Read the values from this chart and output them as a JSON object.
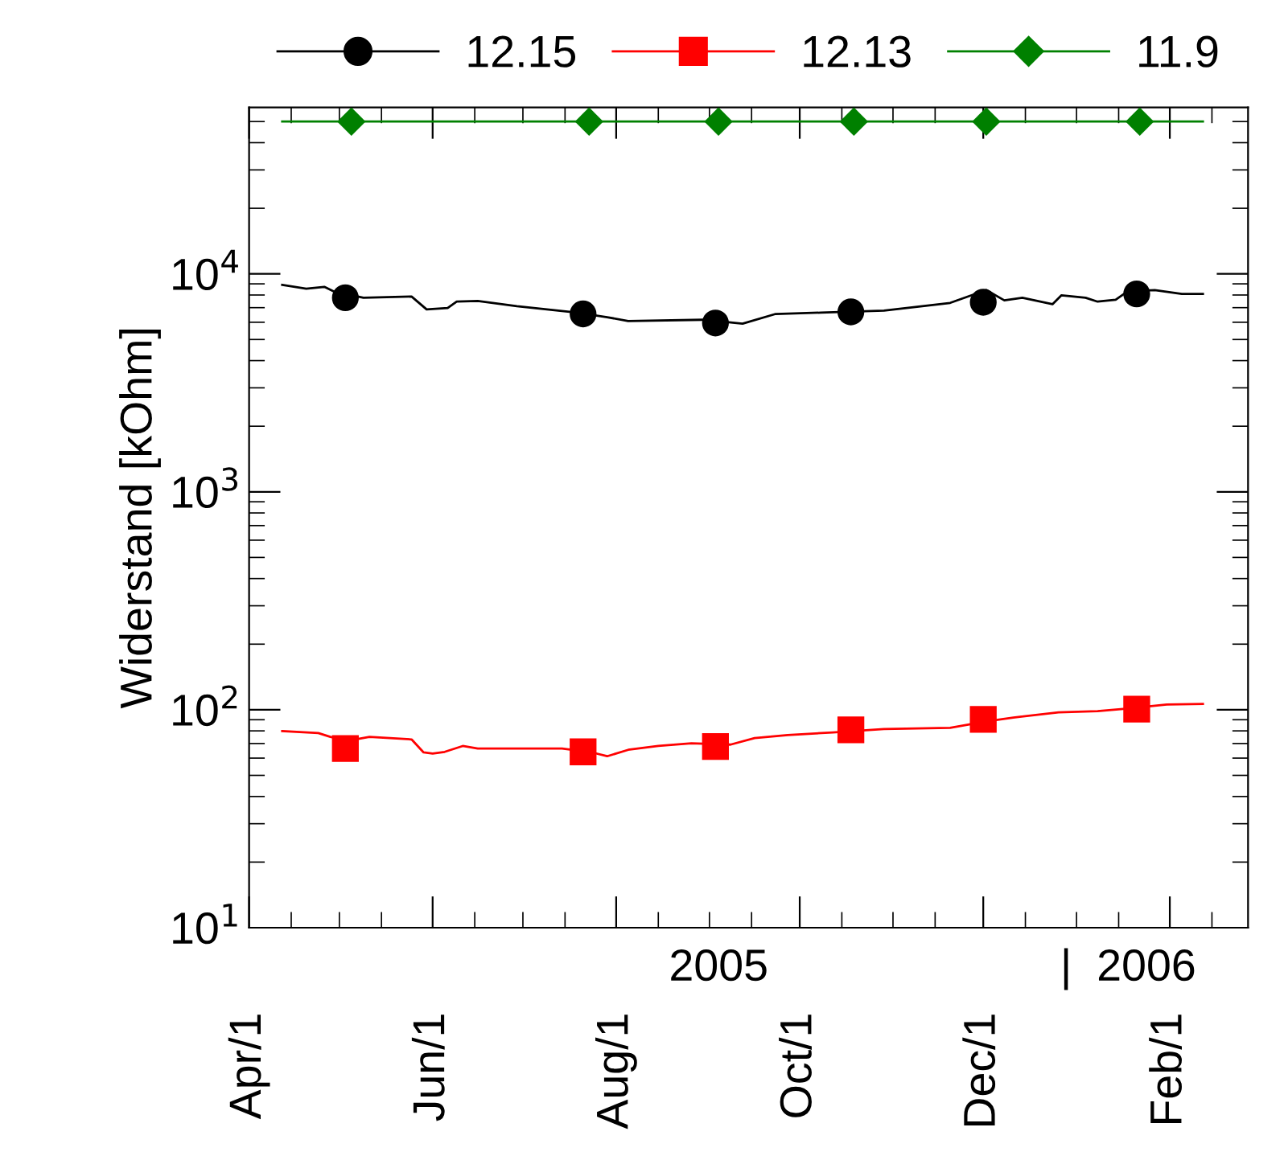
{
  "chart_data": {
    "type": "line",
    "ylabel": "Widerstand [kOhm]",
    "log": "y",
    "ylim": [
      10,
      58000
    ],
    "yticks": [
      {
        "value": 10,
        "label": "10$^{1}$"
      },
      {
        "value": 100,
        "label": "10$^{2}$"
      },
      {
        "value": 1000,
        "label": "10$^{3}$"
      },
      {
        "value": 10000,
        "label": "10$^{4}$"
      }
    ],
    "xlim": [
      "2005-04-01",
      "2006-02-27"
    ],
    "xticks": [
      {
        "value": "2005-04-01",
        "label": "Apr/1"
      },
      {
        "value": "2005-06-01",
        "label": "Jun/1"
      },
      {
        "value": "2005-08-01",
        "label": "Aug/1"
      },
      {
        "value": "2005-10-01",
        "label": "Oct/1"
      },
      {
        "value": "2005-12-01",
        "label": "Dec/1"
      },
      {
        "value": "2006-02-01",
        "label": "Feb/1"
      }
    ],
    "grid": false,
    "legend": "top",
    "annotations": [
      "2005",
      "|  2006"
    ],
    "series": [
      {
        "color": "#000000",
        "marker": "none",
        "x": [
          "2005-04-12",
          "2005-04-20",
          "2005-04-26",
          "2005-04-29",
          "2005-05-09",
          "2005-05-25",
          "2005-05-30",
          "2005-06-06",
          "2005-06-09",
          "2005-06-16",
          "2005-06-29",
          "2005-07-19",
          "2005-07-29",
          "2005-08-05",
          "2005-08-30",
          "2005-09-12",
          "2005-09-23",
          "2005-10-08",
          "2005-10-29",
          "2005-11-20",
          "2005-12-02",
          "2005-12-08",
          "2005-12-14",
          "2005-12-24",
          "2005-12-27",
          "2006-01-04",
          "2006-01-08",
          "2006-01-14",
          "2006-01-18",
          "2006-01-27",
          "2006-02-05",
          "2006-02-12"
        ],
        "values": [
          8910,
          8550,
          8720,
          8320,
          7770,
          7870,
          6870,
          6970,
          7460,
          7510,
          7110,
          6640,
          6330,
          6080,
          6160,
          5910,
          6550,
          6640,
          6780,
          7360,
          8430,
          7560,
          7770,
          7260,
          7980,
          7770,
          7460,
          7610,
          8320,
          8430,
          8090,
          8090
        ]
      },
      {
        "type": "scatter",
        "name": "12.15",
        "color": "#000000",
        "marker": "circle",
        "x": [
          "2005-05-03",
          "2005-07-21",
          "2005-09-03",
          "2005-10-18",
          "2005-12-01",
          "2006-01-21"
        ],
        "values": [
          7770,
          6550,
          5950,
          6690,
          7410,
          8090
        ]
      },
      {
        "color": "#ff0000",
        "marker": "none",
        "x": [
          "2005-04-12",
          "2005-04-24",
          "2005-04-28",
          "2005-05-04",
          "2005-05-11",
          "2005-05-25",
          "2005-05-29",
          "2005-06-01",
          "2005-06-05",
          "2005-06-11",
          "2005-06-16",
          "2005-07-14",
          "2005-07-24",
          "2005-07-29",
          "2005-08-05",
          "2005-08-15",
          "2005-08-26",
          "2005-09-08",
          "2005-09-16",
          "2005-09-27",
          "2005-10-12",
          "2005-10-29",
          "2005-11-20",
          "2005-12-02",
          "2005-12-11",
          "2005-12-26",
          "2006-01-08",
          "2006-01-18",
          "2006-01-31",
          "2006-02-12"
        ],
        "values": [
          79.8,
          78.2,
          75.1,
          72.1,
          75.1,
          73.1,
          63.7,
          62.9,
          64.1,
          68.2,
          66.4,
          66.4,
          63.7,
          61.2,
          65.5,
          68.2,
          70.1,
          69.2,
          74.1,
          76.6,
          78.7,
          81.5,
          82.6,
          88.5,
          92.1,
          97.3,
          98.6,
          101.4,
          105.6,
          106.4
        ]
      },
      {
        "type": "scatter",
        "name": "12.13",
        "color": "#ff0000",
        "marker": "square",
        "x": [
          "2005-05-03",
          "2005-07-21",
          "2005-09-03",
          "2005-10-18",
          "2005-12-01",
          "2006-01-21"
        ],
        "values": [
          66.4,
          64.1,
          67.8,
          80.9,
          90.3,
          100.7
        ]
      },
      {
        "color": "#008000",
        "marker": "none",
        "x": [
          "2005-04-12",
          "2006-02-12"
        ],
        "values": [
          50000,
          50000
        ]
      },
      {
        "type": "scatter",
        "name": "11.9",
        "color": "#008000",
        "marker": "diamond",
        "x": [
          "2005-05-05",
          "2005-07-23",
          "2005-09-04",
          "2005-10-19",
          "2005-12-02",
          "2006-01-22"
        ],
        "values": [
          50000,
          50000,
          50000,
          50000,
          50000,
          50000
        ]
      }
    ]
  }
}
